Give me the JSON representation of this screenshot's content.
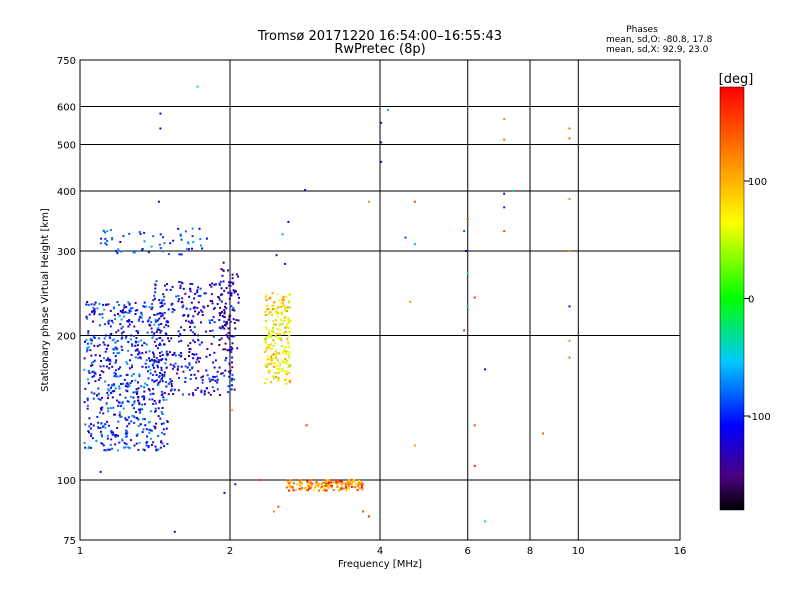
{
  "chart_data": {
    "type": "scatter",
    "title": "Tromsø 20171220 16:54:00–16:55:43",
    "subtitle": "RwPretec (8p)",
    "stats": {
      "heading": "Phases",
      "line_o": "mean, sd,O: -80.8, 17.8",
      "line_x": "mean, sd,X:  92.9, 23.0"
    },
    "xlabel": "Frequency [MHz]",
    "ylabel": "Stationary phase Virtual Height [km]",
    "x_scale": "log",
    "y_scale": "log",
    "xlim": [
      1,
      16
    ],
    "ylim": [
      75,
      750
    ],
    "x_ticks": [
      1,
      2,
      4,
      6,
      8,
      10,
      16
    ],
    "x_tick_labels": [
      "1",
      "2",
      "4",
      "6",
      "8",
      "10",
      "16"
    ],
    "y_ticks": [
      75,
      100,
      200,
      300,
      400,
      500,
      600,
      750
    ],
    "y_tick_labels": [
      "75",
      "100",
      "200",
      "300",
      "400",
      "500",
      "600",
      "750"
    ],
    "grid": true,
    "colorbar": {
      "label": "[deg]",
      "range": [
        -180,
        180
      ],
      "ticks": [
        100,
        0,
        -100
      ],
      "tick_labels": [
        "100",
        "0",
        "-100"
      ]
    },
    "clusters": [
      {
        "f_min": 1.02,
        "f_max": 1.5,
        "h_min": 115,
        "h_max": 235,
        "phase_min": -145,
        "phase_max": -60,
        "count": 640
      },
      {
        "f_min": 1.4,
        "f_max": 2.05,
        "h_min": 150,
        "h_max": 260,
        "phase_min": -160,
        "phase_max": -80,
        "count": 360
      },
      {
        "f_min": 1.9,
        "f_max": 2.1,
        "h_min": 185,
        "h_max": 285,
        "phase_min": -165,
        "phase_max": -110,
        "count": 60
      },
      {
        "f_min": 2.35,
        "f_max": 2.65,
        "h_min": 158,
        "h_max": 245,
        "phase_min": 35,
        "phase_max": 120,
        "count": 220
      },
      {
        "f_min": 2.6,
        "f_max": 3.7,
        "h_min": 95,
        "h_max": 100,
        "phase_min": 70,
        "phase_max": 170,
        "count": 160
      },
      {
        "f_min": 1.1,
        "f_max": 1.8,
        "h_min": 295,
        "h_max": 335,
        "phase_min": -120,
        "phase_max": -60,
        "count": 60
      }
    ],
    "points": [
      {
        "f": 1.72,
        "h": 660,
        "phase": -40
      },
      {
        "f": 1.45,
        "h": 580,
        "phase": -110
      },
      {
        "f": 1.45,
        "h": 540,
        "phase": -120
      },
      {
        "f": 1.44,
        "h": 380,
        "phase": -130
      },
      {
        "f": 2.83,
        "h": 402,
        "phase": -130
      },
      {
        "f": 2.48,
        "h": 294,
        "phase": -150
      },
      {
        "f": 2.58,
        "h": 282,
        "phase": -120
      },
      {
        "f": 2.62,
        "h": 345,
        "phase": -110
      },
      {
        "f": 2.55,
        "h": 325,
        "phase": -60
      },
      {
        "f": 4.02,
        "h": 555,
        "phase": -120
      },
      {
        "f": 4.02,
        "h": 505,
        "phase": -125
      },
      {
        "f": 4.02,
        "h": 460,
        "phase": -130
      },
      {
        "f": 4.15,
        "h": 590,
        "phase": -60
      },
      {
        "f": 3.8,
        "h": 380,
        "phase": 120
      },
      {
        "f": 4.7,
        "h": 380,
        "phase": 150
      },
      {
        "f": 4.7,
        "h": 310,
        "phase": -60
      },
      {
        "f": 4.5,
        "h": 320,
        "phase": -90
      },
      {
        "f": 5.9,
        "h": 330,
        "phase": -80
      },
      {
        "f": 6.0,
        "h": 350,
        "phase": 150
      },
      {
        "f": 5.95,
        "h": 300,
        "phase": -120
      },
      {
        "f": 6.0,
        "h": 270,
        "phase": -20
      },
      {
        "f": 6.0,
        "h": 230,
        "phase": -40
      },
      {
        "f": 5.9,
        "h": 205,
        "phase": 160
      },
      {
        "f": 6.2,
        "h": 240,
        "phase": 160
      },
      {
        "f": 4.6,
        "h": 235,
        "phase": 110
      },
      {
        "f": 4.7,
        "h": 118,
        "phase": 110
      },
      {
        "f": 6.2,
        "h": 130,
        "phase": 140
      },
      {
        "f": 6.2,
        "h": 107,
        "phase": 160
      },
      {
        "f": 6.5,
        "h": 170,
        "phase": -120
      },
      {
        "f": 6.5,
        "h": 82,
        "phase": -40
      },
      {
        "f": 7.1,
        "h": 565,
        "phase": 120
      },
      {
        "f": 7.1,
        "h": 512,
        "phase": 130
      },
      {
        "f": 7.1,
        "h": 395,
        "phase": -120
      },
      {
        "f": 7.1,
        "h": 370,
        "phase": -100
      },
      {
        "f": 7.4,
        "h": 400,
        "phase": -40
      },
      {
        "f": 7.1,
        "h": 330,
        "phase": 150
      },
      {
        "f": 8.5,
        "h": 125,
        "phase": 140
      },
      {
        "f": 9.6,
        "h": 540,
        "phase": 130
      },
      {
        "f": 9.6,
        "h": 515,
        "phase": 130
      },
      {
        "f": 9.6,
        "h": 385,
        "phase": 120
      },
      {
        "f": 9.6,
        "h": 300,
        "phase": 110
      },
      {
        "f": 9.6,
        "h": 230,
        "phase": -120
      },
      {
        "f": 9.6,
        "h": 195,
        "phase": 120
      },
      {
        "f": 9.6,
        "h": 180,
        "phase": 130
      },
      {
        "f": 1.36,
        "h": 118,
        "phase": -90
      },
      {
        "f": 1.1,
        "h": 104,
        "phase": -120
      },
      {
        "f": 1.55,
        "h": 78,
        "phase": -140
      },
      {
        "f": 1.95,
        "h": 94,
        "phase": -130
      },
      {
        "f": 2.05,
        "h": 98,
        "phase": -120
      },
      {
        "f": 2.02,
        "h": 140,
        "phase": 100
      },
      {
        "f": 2.3,
        "h": 100,
        "phase": 160
      },
      {
        "f": 2.45,
        "h": 86,
        "phase": 120
      },
      {
        "f": 2.5,
        "h": 88,
        "phase": 150
      },
      {
        "f": 2.85,
        "h": 130,
        "phase": 160
      },
      {
        "f": 3.7,
        "h": 86,
        "phase": 150
      },
      {
        "f": 3.8,
        "h": 84,
        "phase": 160
      }
    ]
  }
}
